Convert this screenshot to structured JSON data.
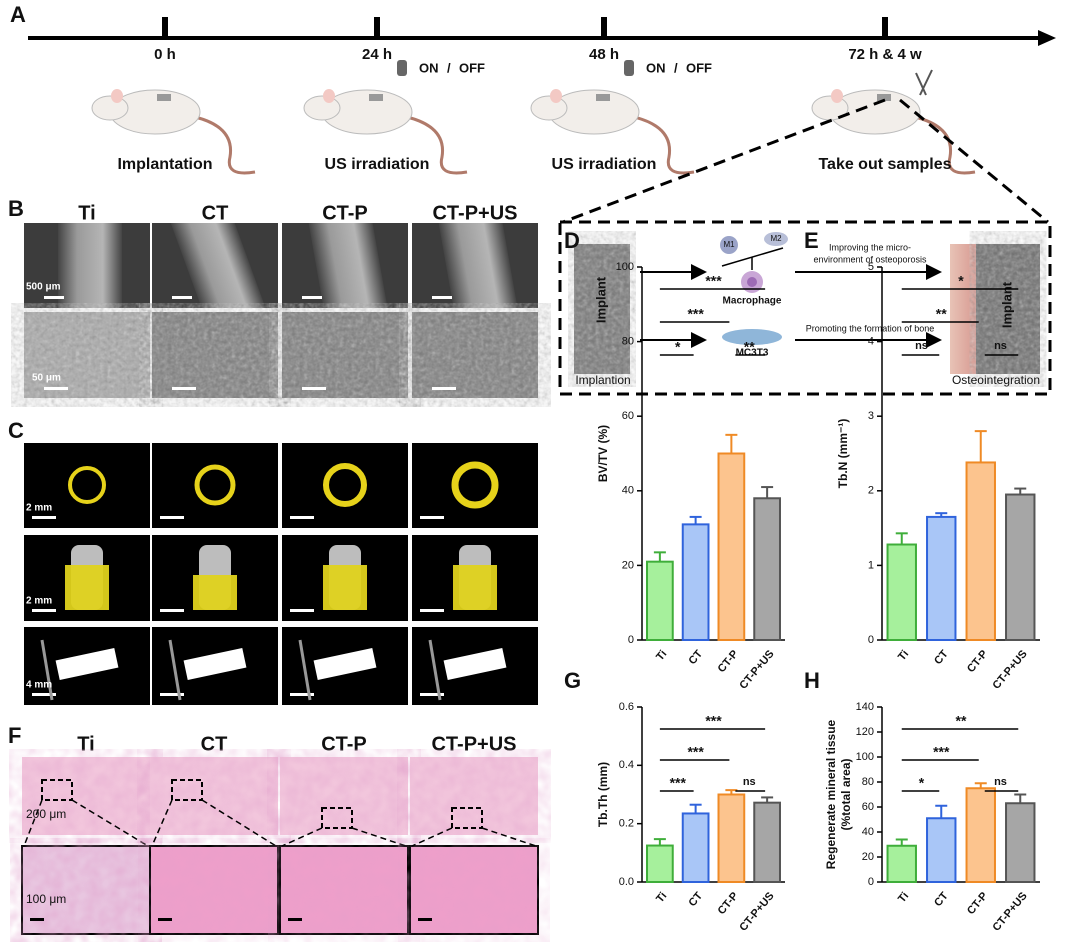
{
  "timeline": {
    "letter": "A",
    "points": [
      {
        "time": "0 h",
        "event": "Implantation"
      },
      {
        "time": "24 h",
        "event": "US irradiation",
        "switch": [
          "ON",
          "/",
          "OFF"
        ]
      },
      {
        "time": "48 h",
        "event": "US irradiation",
        "switch": [
          "ON",
          "/",
          "OFF"
        ]
      },
      {
        "time": "72 h & 4 w",
        "event": "Take out samples"
      }
    ]
  },
  "sem": {
    "letter": "B",
    "columns": [
      "Ti",
      "CT",
      "CT-P",
      "CT-P+US"
    ],
    "scale_bars": [
      "500 μm",
      "50 μm"
    ]
  },
  "mechanism": {
    "implant_left": "Implant",
    "implant_right": "Implant",
    "start": "Implantion",
    "end": "Osteointegration",
    "m1": "M1",
    "m2": "M2",
    "macrophage": "Macrophage",
    "osteoblast": "MC3T3",
    "top_arrow": [
      "Improving the micro-",
      "environment of osteoporosis"
    ],
    "bottom_arrow": "Promoting the formation of bone"
  },
  "micro_ct": {
    "letter": "C",
    "scale_bars": [
      "2 mm",
      "2 mm",
      "4 mm"
    ]
  },
  "histology": {
    "letter": "F",
    "columns": [
      "Ti",
      "CT",
      "CT-P",
      "CT-P+US"
    ],
    "scale_bars": [
      "200 μm",
      "100 μm"
    ]
  },
  "chart_data": [
    {
      "type": "bar",
      "letter": "D",
      "y_label": "BV/TV (%)",
      "categories": [
        "Ti",
        "CT",
        "CT-P",
        "CT-P+US"
      ],
      "values": [
        21,
        31,
        50,
        38
      ],
      "errors": [
        2.5,
        2,
        5,
        3
      ],
      "colors": [
        "#a6f09c",
        "#a9c6f7",
        "#fcc48e",
        "#a6a6a6"
      ],
      "edge_colors": [
        "#3fae3a",
        "#2f63dc",
        "#ef8a25",
        "#555555"
      ],
      "ylim": [
        0,
        100
      ],
      "yticks": [
        0,
        20,
        40,
        60,
        80,
        100
      ],
      "annotations": [
        {
          "label": "***",
          "from": "Ti",
          "to": "CT-P+US"
        },
        {
          "label": "***",
          "from": "Ti",
          "to": "CT-P"
        },
        {
          "label": "*",
          "from": "Ti",
          "to": "CT"
        },
        {
          "label": "**",
          "from": "CT-P",
          "to": "CT-P+US"
        }
      ]
    },
    {
      "type": "bar",
      "letter": "E",
      "y_label": "Tb.N (mm⁻¹)",
      "categories": [
        "Ti",
        "CT",
        "CT-P",
        "CT-P+US"
      ],
      "values": [
        1.28,
        1.65,
        2.38,
        1.95
      ],
      "errors": [
        0.15,
        0.05,
        0.42,
        0.08
      ],
      "colors": [
        "#a6f09c",
        "#a9c6f7",
        "#fcc48e",
        "#a6a6a6"
      ],
      "edge_colors": [
        "#3fae3a",
        "#2f63dc",
        "#ef8a25",
        "#555555"
      ],
      "ylim": [
        0,
        5
      ],
      "yticks": [
        0,
        1,
        2,
        3,
        4,
        5
      ],
      "annotations": [
        {
          "label": "*",
          "from": "Ti",
          "to": "CT-P+US"
        },
        {
          "label": "**",
          "from": "Ti",
          "to": "CT-P"
        },
        {
          "label": "ns",
          "from": "Ti",
          "to": "CT"
        },
        {
          "label": "ns",
          "from": "CT-P",
          "to": "CT-P+US"
        }
      ]
    },
    {
      "type": "bar",
      "letter": "G",
      "y_label": "Tb.Th (mm)",
      "categories": [
        "Ti",
        "CT",
        "CT-P",
        "CT-P+US"
      ],
      "values": [
        0.125,
        0.235,
        0.3,
        0.272
      ],
      "errors": [
        0.022,
        0.03,
        0.015,
        0.018
      ],
      "colors": [
        "#a6f09c",
        "#a9c6f7",
        "#fcc48e",
        "#a6a6a6"
      ],
      "edge_colors": [
        "#3fae3a",
        "#2f63dc",
        "#ef8a25",
        "#555555"
      ],
      "ylim": [
        0,
        0.6
      ],
      "yticks": [
        {
          "value": 0,
          "label": "0.0"
        },
        0.2,
        0.4,
        0.6
      ],
      "annotations": [
        {
          "label": "***",
          "from": "Ti",
          "to": "CT-P+US"
        },
        {
          "label": "***",
          "from": "Ti",
          "to": "CT-P"
        },
        {
          "label": "***",
          "from": "Ti",
          "to": "CT"
        },
        {
          "label": "ns",
          "from": "CT-P",
          "to": "CT-P+US"
        }
      ]
    },
    {
      "type": "bar",
      "letter": "H",
      "y_label": [
        "Regenerate mineral tissue",
        "(%total area)"
      ],
      "categories": [
        "Ti",
        "CT",
        "CT-P",
        "CT-P+US"
      ],
      "values": [
        29,
        51,
        75,
        63
      ],
      "errors": [
        5,
        10,
        4,
        7
      ],
      "colors": [
        "#a6f09c",
        "#a9c6f7",
        "#fcc48e",
        "#a6a6a6"
      ],
      "edge_colors": [
        "#3fae3a",
        "#2f63dc",
        "#ef8a25",
        "#555555"
      ],
      "ylim": [
        0,
        140
      ],
      "yticks": [
        0,
        20,
        40,
        60,
        80,
        100,
        120,
        140
      ],
      "annotations": [
        {
          "label": "**",
          "from": "Ti",
          "to": "CT-P+US"
        },
        {
          "label": "***",
          "from": "Ti",
          "to": "CT-P"
        },
        {
          "label": "*",
          "from": "Ti",
          "to": "CT"
        },
        {
          "label": "ns",
          "from": "CT-P",
          "to": "CT-P+US"
        }
      ]
    }
  ]
}
